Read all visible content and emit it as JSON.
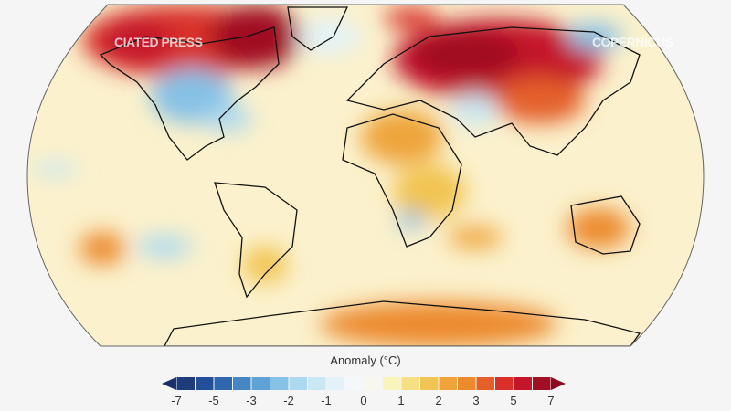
{
  "watermarks": {
    "left": "CIATED PRESS",
    "right": "COPERNICUS"
  },
  "colorbar": {
    "title": "Anomaly (°C)",
    "ticks": [
      "-7",
      "-5",
      "-3",
      "-2",
      "-1",
      "0",
      "1",
      "2",
      "3",
      "5",
      "7"
    ],
    "colors": [
      "#1f3c7a",
      "#234f98",
      "#2f66b0",
      "#4586c4",
      "#5fa3d6",
      "#86c1e6",
      "#acd9f0",
      "#c9e8f3",
      "#e3f2f8",
      "#f5f8fa",
      "#f8f7ee",
      "#fbf3bc",
      "#f6df84",
      "#f2c451",
      "#eea43a",
      "#ec8a2e",
      "#e4602a",
      "#d9302a",
      "#c5152a",
      "#a00f24"
    ],
    "under_color": "#1a2f66",
    "over_color": "#8a0b1f"
  },
  "map": {
    "projection": "Robinson",
    "variable": "surface air temperature anomaly",
    "ocean_base_color": "#fbf1cc"
  }
}
